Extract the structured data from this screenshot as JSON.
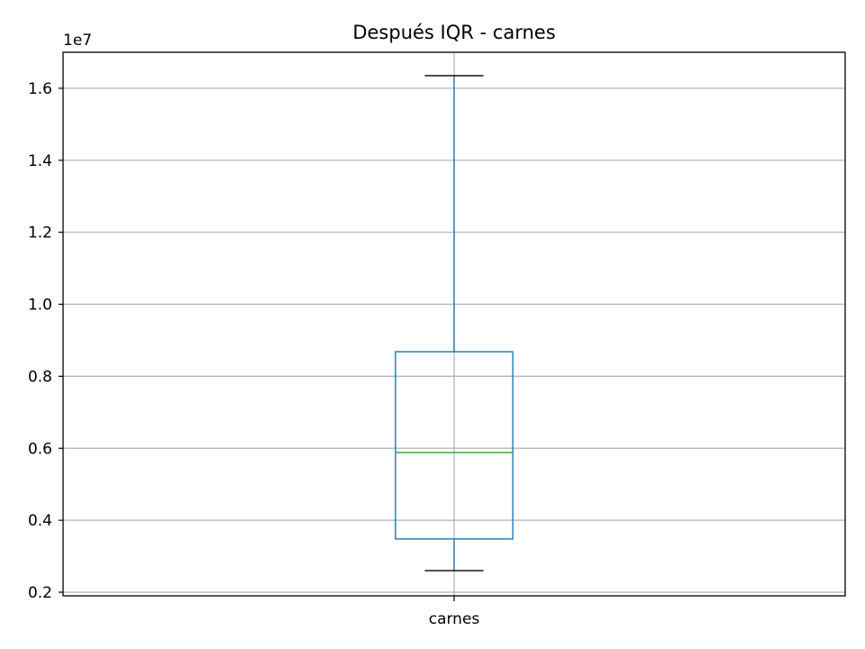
{
  "chart_data": {
    "type": "boxplot",
    "title": "Después IQR - carnes",
    "xlabel": "",
    "ylabel": "",
    "y_multiplier": "1e7",
    "ylim": [
      1.9,
      17.0
    ],
    "y_ticks": [
      {
        "value": 2,
        "label": "0.2"
      },
      {
        "value": 4,
        "label": "0.4"
      },
      {
        "value": 6,
        "label": "0.6"
      },
      {
        "value": 8,
        "label": "0.8"
      },
      {
        "value": 10,
        "label": "1.0"
      },
      {
        "value": 12,
        "label": "1.2"
      },
      {
        "value": 14,
        "label": "1.4"
      },
      {
        "value": 16,
        "label": "1.6"
      }
    ],
    "categories": [
      "carnes"
    ],
    "boxes": [
      {
        "name": "carnes",
        "whisker_low": 2.6,
        "q1": 3.48,
        "median": 5.88,
        "q3": 8.68,
        "whisker_high": 16.35
      }
    ],
    "grid": true,
    "colors": {
      "box": "#1f77b4",
      "median": "#2ca02c",
      "cap": "#000000",
      "grid": "#b0b0b0"
    }
  }
}
